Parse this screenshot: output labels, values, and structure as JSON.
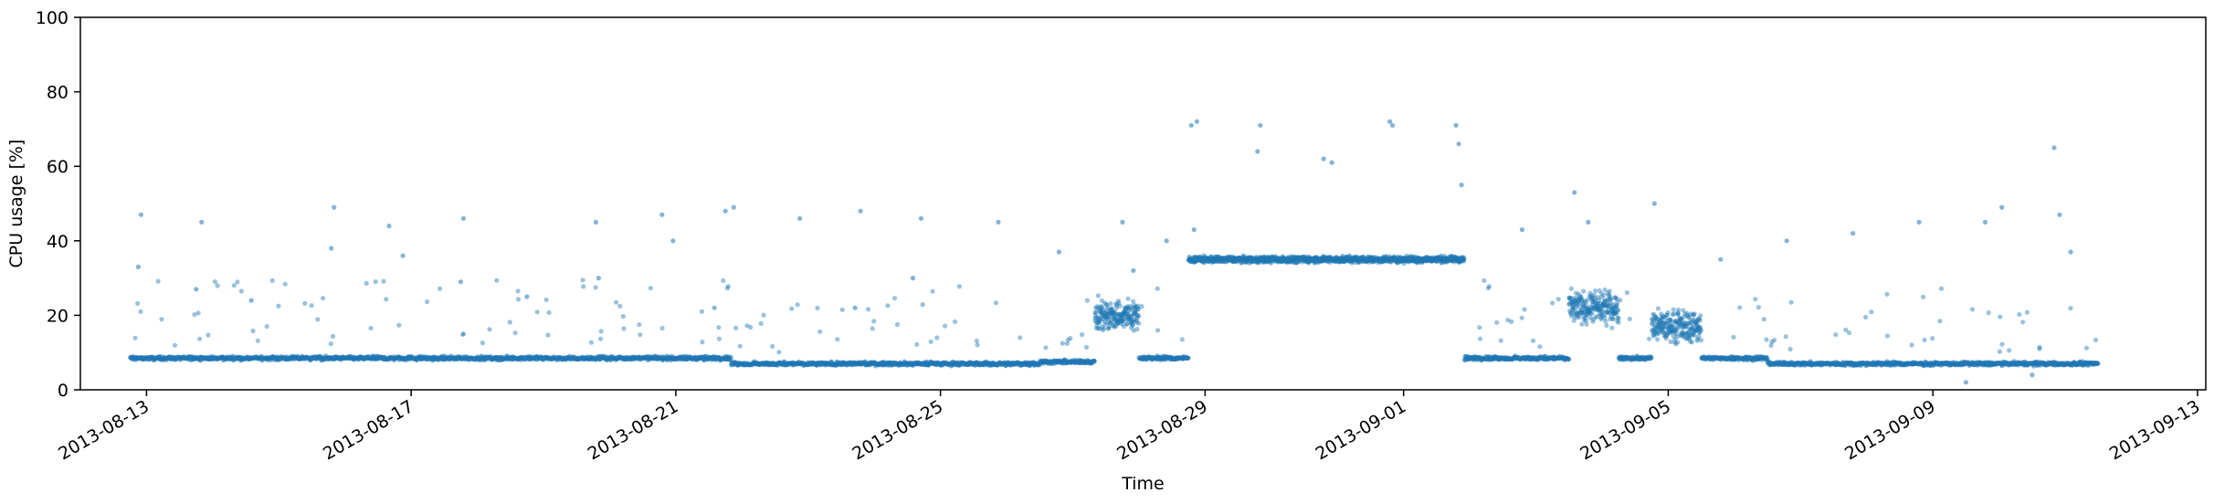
{
  "chart_data": {
    "type": "scatter",
    "title": "",
    "xlabel": "Time",
    "ylabel": "CPU usage [%]",
    "ylim": [
      0,
      100
    ],
    "xlim": [
      "2013-08-12T00:00",
      "2013-09-13T03:00"
    ],
    "y_ticks": [
      0,
      20,
      40,
      60,
      80,
      100
    ],
    "x_ticks": [
      "2013-08-13",
      "2013-08-17",
      "2013-08-21",
      "2013-08-25",
      "2013-08-29",
      "2013-09-01",
      "2013-09-05",
      "2013-09-09",
      "2013-09-13"
    ],
    "grid": false,
    "legend": "none",
    "series": [
      {
        "color": "#1f77b4",
        "segments": [
          {
            "start": "2013-08-12T18:00",
            "end": "2013-08-21T20:00",
            "level": 8.5
          },
          {
            "start": "2013-08-21T20:00",
            "end": "2013-08-26T12:00",
            "level": 7.0
          },
          {
            "start": "2013-08-26T12:00",
            "end": "2013-08-27T08:00",
            "level": 7.5
          },
          {
            "start": "2013-08-27T08:00",
            "end": "2013-08-28T00:00",
            "level": 20.0
          },
          {
            "start": "2013-08-28T00:00",
            "end": "2013-08-28T18:00",
            "level": 8.5
          },
          {
            "start": "2013-08-28T18:00",
            "end": "2013-09-01T22:00",
            "level": 35.0
          },
          {
            "start": "2013-09-01T22:00",
            "end": "2013-09-03T12:00",
            "level": 8.5
          },
          {
            "start": "2013-09-03T12:00",
            "end": "2013-09-04T06:00",
            "level": 22.0
          },
          {
            "start": "2013-09-04T06:00",
            "end": "2013-09-04T18:00",
            "level": 8.5
          },
          {
            "start": "2013-09-04T18:00",
            "end": "2013-09-05T12:00",
            "level": 17.0
          },
          {
            "start": "2013-09-05T12:00",
            "end": "2013-09-06T12:00",
            "level": 8.5
          },
          {
            "start": "2013-09-06T12:00",
            "end": "2013-09-11T12:00",
            "level": 7.0
          }
        ],
        "outliers": [
          [
            "2013-08-12T22:00",
            47
          ],
          [
            "2013-08-12T21:00",
            33
          ],
          [
            "2013-08-13T20:00",
            45
          ],
          [
            "2013-08-13T18:00",
            27
          ],
          [
            "2013-08-14T14:00",
            24
          ],
          [
            "2013-08-15T20:00",
            49
          ],
          [
            "2013-08-15T19:00",
            38
          ],
          [
            "2013-08-16T16:00",
            44
          ],
          [
            "2013-08-16T21:00",
            36
          ],
          [
            "2013-08-17T19:00",
            46
          ],
          [
            "2013-08-17T18:00",
            29
          ],
          [
            "2013-08-18T18:00",
            25
          ],
          [
            "2013-08-19T19:00",
            45
          ],
          [
            "2013-08-19T20:00",
            30
          ],
          [
            "2013-08-20T19:00",
            47
          ],
          [
            "2013-08-20T23:00",
            40
          ],
          [
            "2013-08-21T18:00",
            48
          ],
          [
            "2013-08-21T14:00",
            22
          ],
          [
            "2013-08-21T21:00",
            49
          ],
          [
            "2013-08-22T21:00",
            46
          ],
          [
            "2013-08-23T19:00",
            48
          ],
          [
            "2013-08-23T17:00",
            22
          ],
          [
            "2013-08-24T17:00",
            46
          ],
          [
            "2013-08-24T14:00",
            30
          ],
          [
            "2013-08-25T21:00",
            45
          ],
          [
            "2013-08-26T19:00",
            37
          ],
          [
            "2013-08-27T18:00",
            45
          ],
          [
            "2013-08-27T22:00",
            32
          ],
          [
            "2013-08-28T20:00",
            43
          ],
          [
            "2013-08-28T10:00",
            40
          ],
          [
            "2013-08-28T19:00",
            71
          ],
          [
            "2013-08-28T21:00",
            72
          ],
          [
            "2013-08-29T19:00",
            64
          ],
          [
            "2013-08-29T20:00",
            71
          ],
          [
            "2013-08-30T19:00",
            62
          ],
          [
            "2013-08-30T22:00",
            61
          ],
          [
            "2013-08-31T19:00",
            72
          ],
          [
            "2013-08-31T20:00",
            71
          ],
          [
            "2013-09-01T19:00",
            71
          ],
          [
            "2013-09-01T20:00",
            66
          ],
          [
            "2013-09-01T21:00",
            55
          ],
          [
            "2013-09-02T19:00",
            43
          ],
          [
            "2013-09-03T19:00",
            45
          ],
          [
            "2013-09-03T14:00",
            53
          ],
          [
            "2013-09-04T19:00",
            50
          ],
          [
            "2013-09-05T19:00",
            35
          ],
          [
            "2013-09-06T19:00",
            40
          ],
          [
            "2013-09-07T19:00",
            42
          ],
          [
            "2013-09-08T19:00",
            45
          ],
          [
            "2013-09-09T19:00",
            45
          ],
          [
            "2013-09-10T01:00",
            49
          ],
          [
            "2013-09-10T22:00",
            47
          ],
          [
            "2013-09-10T20:00",
            65
          ],
          [
            "2013-09-11T02:00",
            37
          ],
          [
            "2013-09-09T12:00",
            2
          ],
          [
            "2013-09-10T12:00",
            4
          ]
        ]
      }
    ]
  }
}
